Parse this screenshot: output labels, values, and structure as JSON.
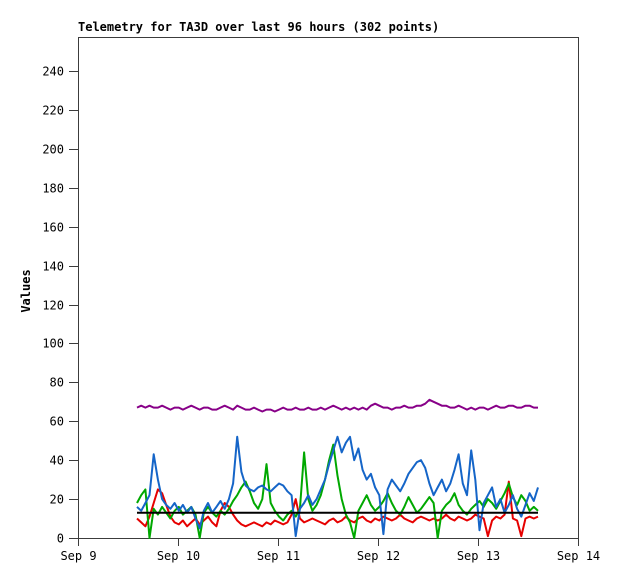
{
  "chart_data": {
    "type": "line",
    "title": "Telemetry for TA3D over last 96 hours (302 points)",
    "xlabel": "",
    "ylabel": "Values",
    "ylim": [
      0,
      257
    ],
    "yticks": [
      0,
      20,
      40,
      60,
      80,
      100,
      120,
      140,
      160,
      180,
      200,
      220,
      240
    ],
    "grid": false,
    "legend_position": "none",
    "x_axis": {
      "unit": "days",
      "range_days": [
        0,
        5
      ],
      "tick_labels": [
        "Sep 9",
        "Sep 10",
        "Sep 11",
        "Sep 12",
        "Sep 13",
        "Sep 14"
      ]
    },
    "data_window": {
      "start_day": 0.59,
      "end_day": 4.6,
      "hours_span": 96,
      "source_point_count": 302
    },
    "colors": {
      "red": "#e60000",
      "green": "#00a800",
      "blue": "#1565c8",
      "purple": "#880088",
      "reference": "#000000",
      "axis": "#3c3c3c",
      "text": "#000000",
      "background": "#ffffff"
    },
    "series": [
      {
        "name": "red-line",
        "color": "#e60000",
        "values": [
          10,
          8,
          6,
          11,
          18,
          25,
          23,
          17,
          11,
          8,
          7,
          9,
          6,
          8,
          10,
          7,
          9,
          11,
          8,
          6,
          14,
          18,
          16,
          12,
          9,
          7,
          6,
          7,
          8,
          7,
          6,
          8,
          7,
          9,
          8,
          7,
          8,
          12,
          20,
          10,
          8,
          9,
          10,
          9,
          8,
          7,
          9,
          10,
          8,
          9,
          11,
          9,
          8,
          10,
          11,
          9,
          8,
          10,
          9,
          11,
          10,
          9,
          10,
          12,
          10,
          9,
          8,
          10,
          11,
          10,
          9,
          10,
          9,
          10,
          12,
          10,
          9,
          11,
          10,
          9,
          10,
          12,
          11,
          10,
          1,
          9,
          11,
          10,
          12,
          29,
          10,
          9,
          1,
          10,
          11,
          10,
          11
        ]
      },
      {
        "name": "green-line",
        "color": "#00a800",
        "values": [
          18,
          22,
          25,
          0,
          15,
          12,
          16,
          13,
          10,
          14,
          16,
          12,
          14,
          16,
          12,
          0,
          13,
          16,
          13,
          11,
          14,
          12,
          15,
          19,
          22,
          26,
          29,
          24,
          18,
          15,
          20,
          38,
          18,
          14,
          11,
          9,
          12,
          14,
          11,
          15,
          44,
          20,
          14,
          17,
          22,
          30,
          40,
          48,
          32,
          20,
          12,
          8,
          0,
          14,
          18,
          22,
          17,
          14,
          16,
          19,
          23,
          18,
          14,
          12,
          16,
          21,
          17,
          13,
          15,
          18,
          21,
          18,
          0,
          14,
          17,
          19,
          23,
          17,
          14,
          12,
          15,
          17,
          19,
          16,
          20,
          18,
          15,
          19,
          23,
          28,
          21,
          17,
          22,
          19,
          14,
          16,
          14
        ]
      },
      {
        "name": "blue-line",
        "color": "#1565c8",
        "values": [
          16,
          14,
          18,
          22,
          43,
          30,
          20,
          17,
          15,
          18,
          14,
          17,
          13,
          16,
          10,
          5,
          14,
          18,
          13,
          16,
          19,
          15,
          20,
          28,
          52,
          34,
          27,
          25,
          24,
          26,
          27,
          25,
          24,
          26,
          28,
          27,
          24,
          22,
          1,
          15,
          18,
          22,
          17,
          20,
          25,
          30,
          38,
          45,
          52,
          44,
          49,
          52,
          40,
          46,
          35,
          30,
          33,
          26,
          22,
          2,
          25,
          30,
          27,
          24,
          28,
          33,
          36,
          39,
          40,
          36,
          28,
          22,
          26,
          30,
          24,
          28,
          35,
          43,
          28,
          22,
          45,
          30,
          4,
          18,
          22,
          26,
          16,
          20,
          13,
          17,
          22,
          15,
          11,
          17,
          23,
          19,
          26
        ]
      },
      {
        "name": "purple-line",
        "color": "#880088",
        "values": [
          67,
          68,
          67,
          68,
          67,
          67,
          68,
          67,
          66,
          67,
          67,
          66,
          67,
          68,
          67,
          66,
          67,
          67,
          66,
          66,
          67,
          68,
          67,
          66,
          68,
          67,
          66,
          66,
          67,
          66,
          65,
          66,
          66,
          65,
          66,
          67,
          66,
          66,
          67,
          66,
          66,
          67,
          66,
          66,
          67,
          66,
          67,
          68,
          67,
          66,
          67,
          66,
          67,
          66,
          67,
          66,
          68,
          69,
          68,
          67,
          67,
          66,
          67,
          67,
          68,
          67,
          67,
          68,
          68,
          69,
          71,
          70,
          69,
          68,
          68,
          67,
          67,
          68,
          67,
          66,
          67,
          66,
          67,
          67,
          66,
          67,
          68,
          67,
          67,
          68,
          68,
          67,
          67,
          68,
          68,
          67,
          67
        ]
      },
      {
        "name": "reference-line",
        "color": "#000000",
        "values": [
          13,
          13
        ]
      }
    ]
  }
}
